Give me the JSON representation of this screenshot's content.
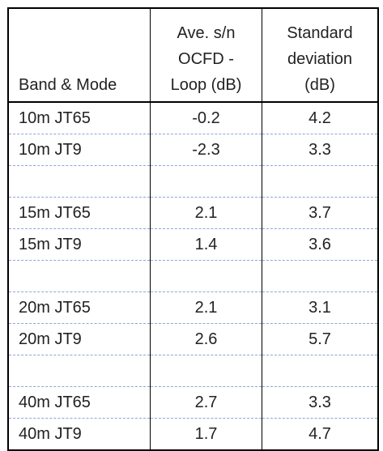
{
  "table": {
    "header": [
      [
        "Band & Mode"
      ],
      [
        "Ave. s/n",
        "OCFD -",
        "Loop (dB)"
      ],
      [
        "Standard",
        "deviation",
        "(dB)"
      ]
    ],
    "groups": [
      {
        "rows": [
          [
            "10m JT65",
            "-0.2",
            "4.2"
          ],
          [
            "10m JT9",
            "-2.3",
            "3.3"
          ]
        ]
      },
      {
        "rows": [
          [
            "15m JT65",
            "2.1",
            "3.7"
          ],
          [
            "15m JT9",
            "1.4",
            "3.6"
          ]
        ]
      },
      {
        "rows": [
          [
            "20m JT65",
            "2.1",
            "3.1"
          ],
          [
            "20m JT9",
            "2.6",
            "5.7"
          ]
        ]
      },
      {
        "rows": [
          [
            "40m JT65",
            "2.7",
            "3.3"
          ],
          [
            "40m JT9",
            "1.7",
            "4.7"
          ]
        ]
      }
    ]
  }
}
